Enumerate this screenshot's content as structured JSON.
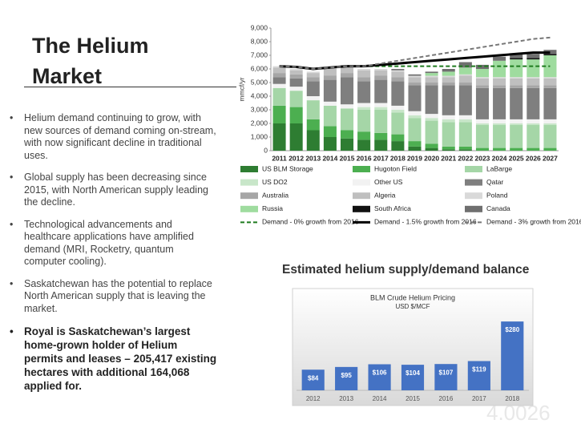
{
  "slide": {
    "title": "The Helium Market",
    "bullets": [
      {
        "text": "Helium demand continuing to grow, with new sources of demand coming on-stream, with now significant decline in traditional uses.",
        "bold": false
      },
      {
        "text": "Global supply has been decreasing since 2015, with North American supply leading the decline.",
        "bold": false
      },
      {
        "text": "Technological advancements and healthcare applications have amplified demand (MRI, Rocketry, quantum computer cooling).",
        "bold": false
      },
      {
        "text": "Saskatchewan has the potential to replace North American supply that is leaving the market.",
        "bold": false
      },
      {
        "text": "Royal is Saskatchewan’s largest home-grown holder of Helium permits and leases – 205,417 existing hectares with additional 164,068 applied for.",
        "bold": true
      }
    ],
    "caption": "Estimated helium supply/demand balance",
    "watermark": "4.0026"
  },
  "chart_data": [
    {
      "type": "stacked_bar",
      "y_label": "mmcf/yr",
      "categories": [
        "2011",
        "2012",
        "2013",
        "2014",
        "2015",
        "2016",
        "2017",
        "2018",
        "2019",
        "2020",
        "2021",
        "2022",
        "2023",
        "2024",
        "2025",
        "2026",
        "2027"
      ],
      "ylim": [
        0,
        9000
      ],
      "yticks": [
        0,
        {
          "value": 1000,
          "label": "1,000"
        },
        {
          "value": 2000,
          "label": "2,000"
        },
        {
          "value": 3000,
          "label": "3,000"
        },
        {
          "value": 4000,
          "label": "4,000"
        },
        {
          "value": 5000,
          "label": "5,000"
        },
        {
          "value": 6000,
          "label": "6,000"
        },
        {
          "value": 7000,
          "label": "7,000"
        },
        {
          "value": 8000,
          "label": "8,000"
        },
        {
          "value": 9000,
          "label": "9,000"
        }
      ],
      "series": [
        {
          "name": "US BLM Storage",
          "color": "#2e7d32",
          "values": [
            2000,
            2000,
            1500,
            1000,
            900,
            800,
            800,
            700,
            300,
            200,
            100,
            100,
            0,
            0,
            0,
            0,
            0
          ]
        },
        {
          "name": "Hugoton Field",
          "color": "#4caf50",
          "values": [
            1300,
            1200,
            800,
            800,
            600,
            600,
            500,
            500,
            400,
            300,
            200,
            200,
            200,
            200,
            200,
            200,
            200
          ]
        },
        {
          "name": "LaBarge",
          "color": "#a5d6a7",
          "values": [
            1300,
            1200,
            1400,
            1500,
            1600,
            1600,
            1700,
            1600,
            1700,
            1700,
            1800,
            1800,
            1700,
            1700,
            1700,
            1700,
            1700
          ]
        },
        {
          "name": "US DO2",
          "color": "#c8e6c9",
          "values": [
            0,
            0,
            0,
            0,
            0,
            200,
            200,
            200,
            200,
            200,
            200,
            200,
            100,
            100,
            100,
            100,
            100
          ]
        },
        {
          "name": "Other US",
          "color": "#f2f2f2",
          "values": [
            300,
            300,
            300,
            300,
            300,
            300,
            300,
            300,
            300,
            300,
            300,
            300,
            300,
            300,
            300,
            300,
            300
          ]
        },
        {
          "name": "Qatar",
          "color": "#7f7f7f",
          "values": [
            500,
            600,
            1100,
            1600,
            2000,
            1600,
            1700,
            1800,
            1900,
            2100,
            2200,
            2200,
            2300,
            2300,
            2300,
            2300,
            2300
          ]
        },
        {
          "name": "Australia",
          "color": "#a6a6a6",
          "values": [
            300,
            300,
            300,
            300,
            300,
            300,
            300,
            300,
            200,
            200,
            200,
            200,
            200,
            200,
            200,
            200,
            200
          ]
        },
        {
          "name": "Algeria",
          "color": "#bfbfbf",
          "values": [
            400,
            300,
            300,
            500,
            500,
            500,
            400,
            400,
            400,
            400,
            400,
            500,
            500,
            500,
            500,
            500,
            500
          ]
        },
        {
          "name": "Poland",
          "color": "#d9d9d9",
          "values": [
            100,
            100,
            100,
            100,
            100,
            100,
            100,
            100,
            100,
            100,
            100,
            100,
            100,
            100,
            100,
            100,
            100
          ]
        },
        {
          "name": "Russia",
          "color": "#9fdc9f",
          "values": [
            0,
            0,
            0,
            0,
            0,
            0,
            0,
            0,
            0,
            200,
            300,
            500,
            600,
            1200,
            1300,
            1300,
            1600
          ]
        },
        {
          "name": "South Africa",
          "color": "#111111",
          "values": [
            0,
            0,
            0,
            0,
            0,
            0,
            0,
            0,
            0,
            0,
            0,
            0,
            0,
            0,
            100,
            100,
            100
          ]
        },
        {
          "name": "Canada",
          "color": "#6f6f6f",
          "values": [
            0,
            0,
            0,
            0,
            0,
            0,
            0,
            100,
            100,
            100,
            200,
            400,
            300,
            300,
            300,
            300,
            300
          ]
        }
      ],
      "lines": [
        {
          "name": "Demand - 0% growth from 2016",
          "color": "#1e7b1e",
          "dash": "dashed",
          "values": [
            6200,
            6150,
            6000,
            6100,
            6200,
            6200,
            6200,
            6200,
            6200,
            6200,
            6200,
            6200,
            6200,
            6200,
            6200,
            6200,
            6200
          ]
        },
        {
          "name": "Demand - 1.5% growth from 2016",
          "color": "#000000",
          "dash": "solid",
          "values": [
            6200,
            6150,
            6000,
            6100,
            6200,
            6200,
            6300,
            6400,
            6500,
            6600,
            6700,
            6800,
            6900,
            7000,
            7100,
            7200,
            7200
          ]
        },
        {
          "name": "Demand - 3% growth from 2016",
          "color": "#777777",
          "dash": "dashed",
          "values": [
            6200,
            6150,
            6000,
            6100,
            6200,
            6200,
            6400,
            6600,
            6800,
            7000,
            7200,
            7400,
            7600,
            7800,
            8000,
            8200,
            8300
          ]
        }
      ]
    },
    {
      "type": "bar",
      "title": "BLM Crude Helium Pricing",
      "subtitle": "USD $/MCF",
      "categories": [
        "2012",
        "2013",
        "2014",
        "2015",
        "2016",
        "2017",
        "2018"
      ],
      "values": [
        84,
        95,
        106,
        104,
        107,
        119,
        280
      ],
      "value_labels": [
        "$84",
        "$95",
        "$106",
        "$104",
        "$107",
        "$119",
        "$280"
      ],
      "color": "#4472c4",
      "ylim": [
        0,
        300
      ]
    }
  ]
}
